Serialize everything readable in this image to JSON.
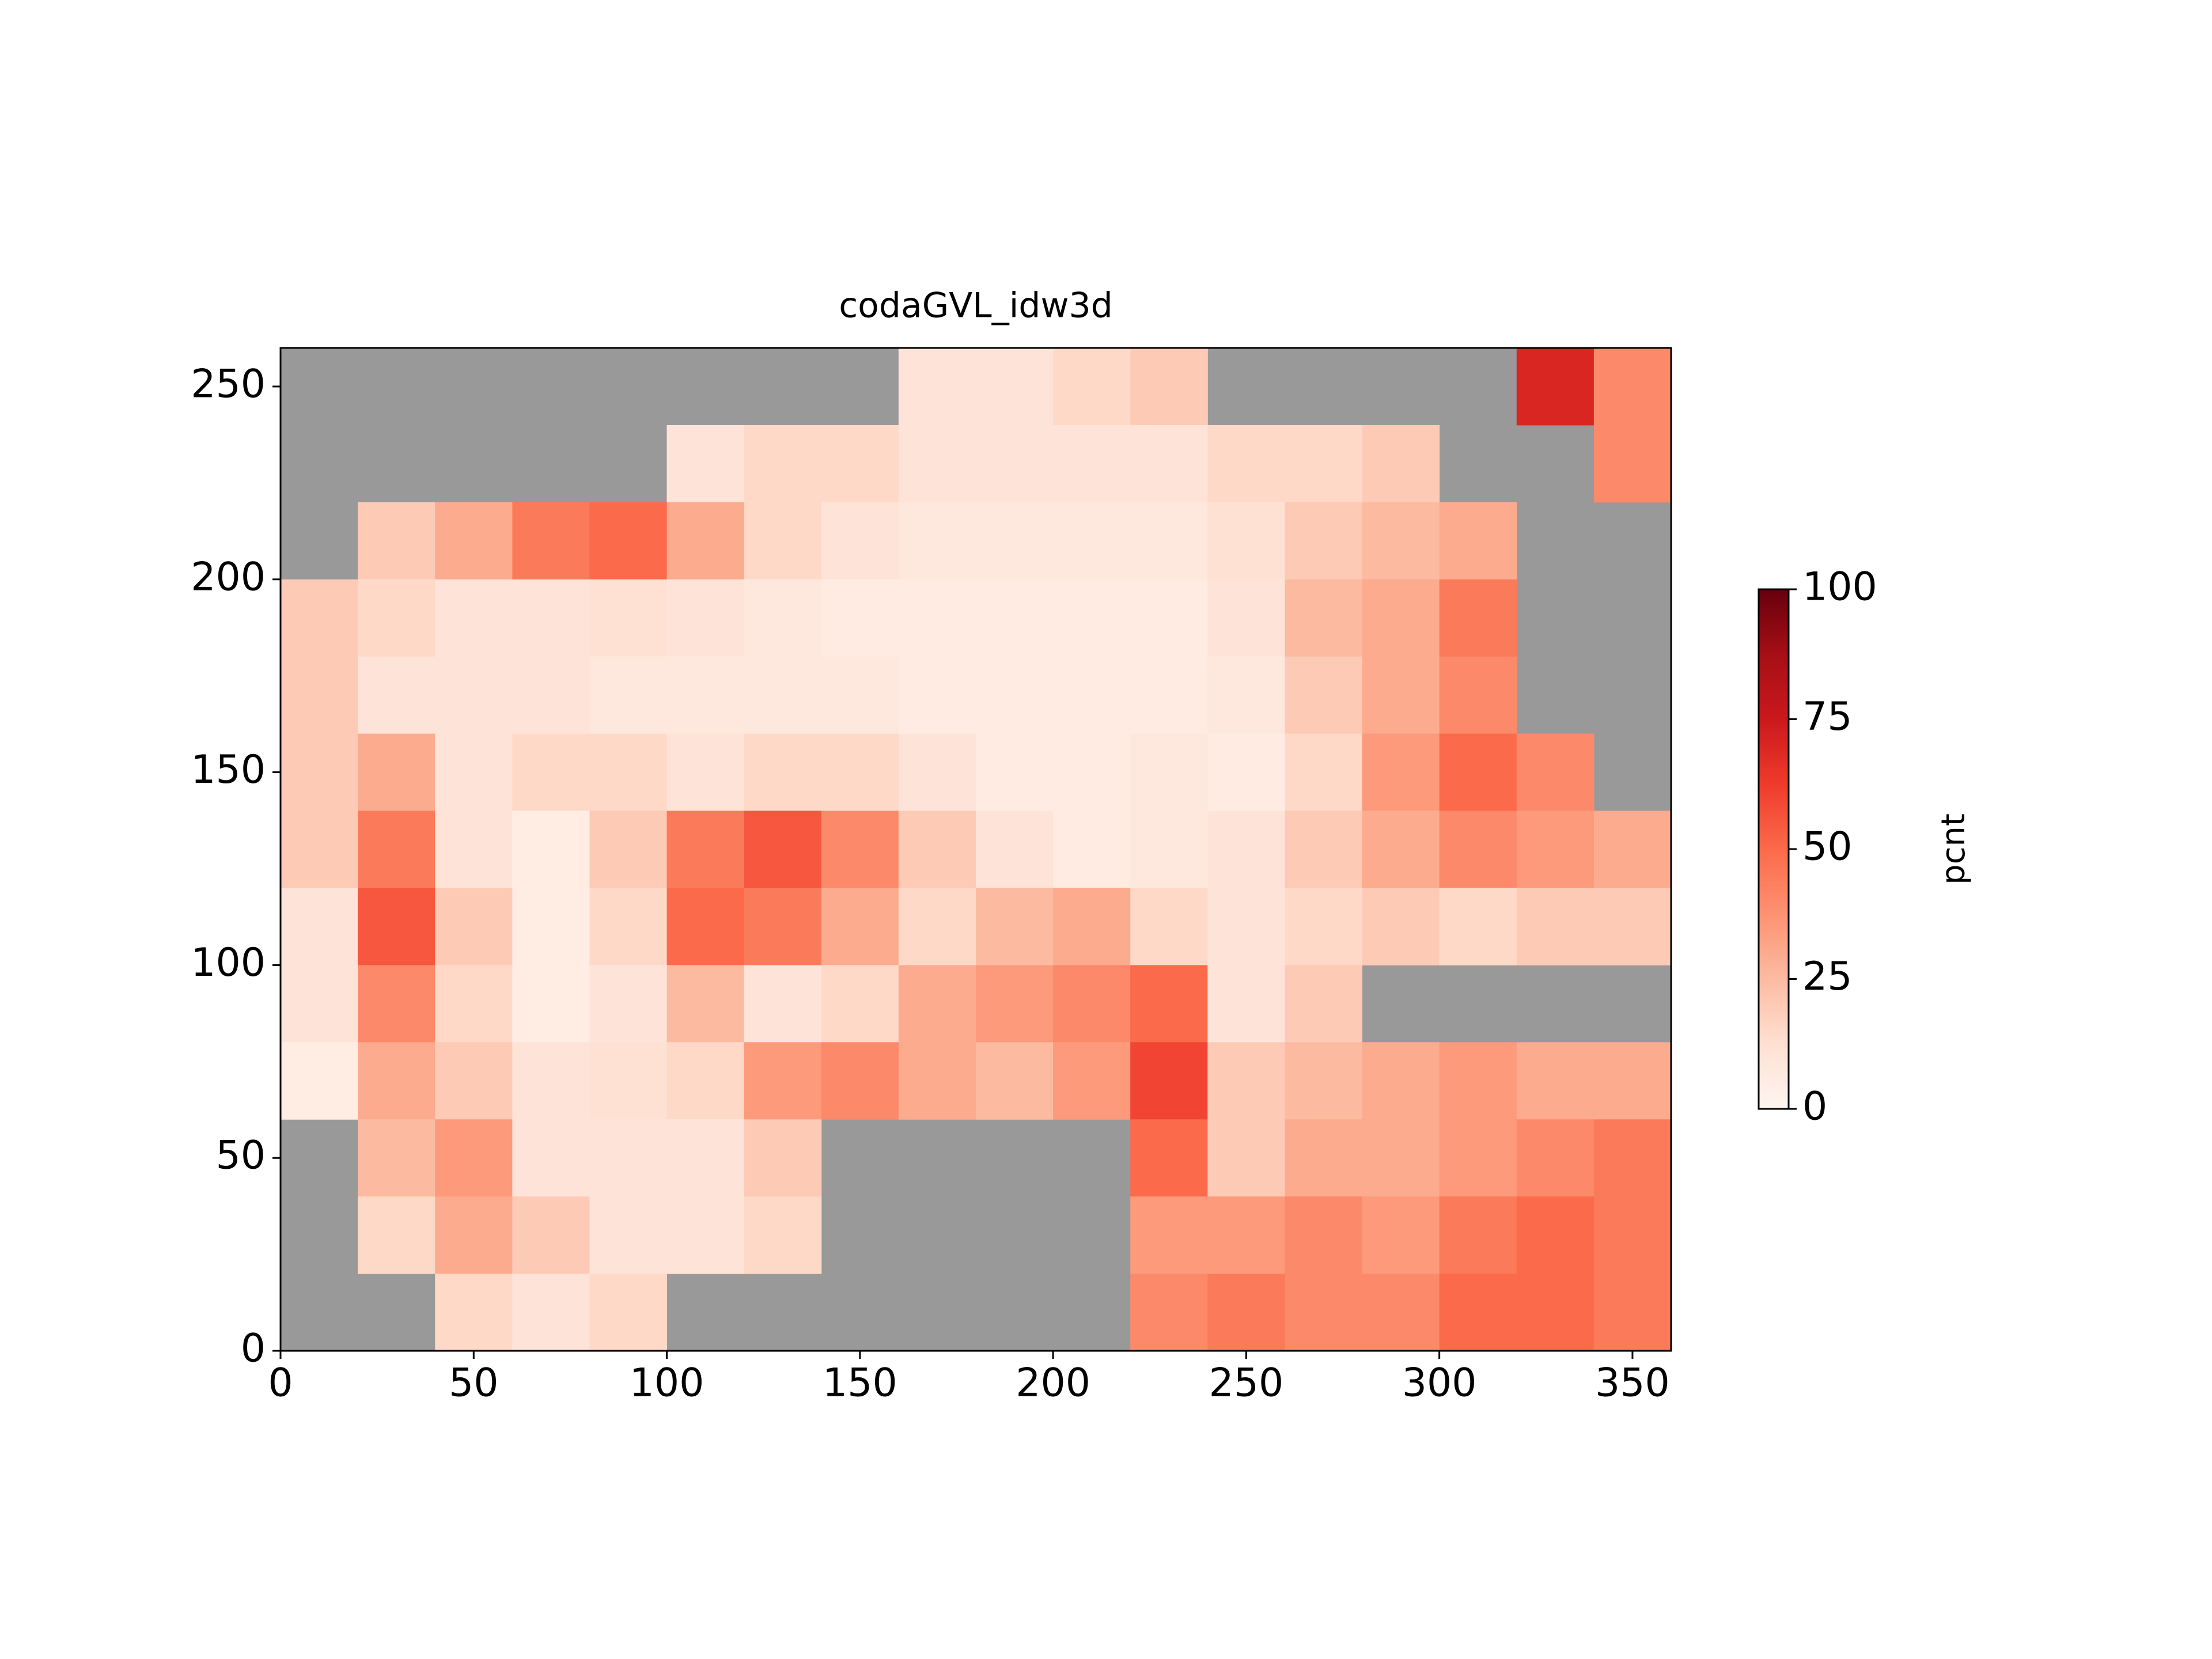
{
  "chart_data": {
    "type": "heatmap",
    "title": "codaGVL_idw3d",
    "xlim": [
      0,
      360
    ],
    "ylim": [
      0,
      260
    ],
    "xticks": [
      0,
      50,
      100,
      150,
      200,
      250,
      300,
      350
    ],
    "yticks": [
      0,
      50,
      100,
      150,
      200,
      250
    ],
    "values": [
      [
        null,
        null,
        null,
        null,
        null,
        null,
        null,
        null,
        10,
        10,
        15,
        20,
        null,
        null,
        null,
        null,
        70,
        40
      ],
      [
        null,
        null,
        null,
        null,
        null,
        10,
        15,
        15,
        10,
        10,
        10,
        10,
        15,
        15,
        20,
        null,
        null,
        40
      ],
      [
        null,
        20,
        30,
        45,
        50,
        30,
        15,
        10,
        8,
        8,
        8,
        8,
        12,
        20,
        25,
        30,
        null,
        null
      ],
      [
        20,
        15,
        10,
        10,
        12,
        10,
        8,
        6,
        6,
        6,
        6,
        6,
        10,
        25,
        30,
        45,
        null,
        null
      ],
      [
        20,
        10,
        10,
        10,
        8,
        8,
        8,
        8,
        6,
        6,
        6,
        6,
        8,
        20,
        30,
        40,
        null,
        null
      ],
      [
        20,
        30,
        10,
        15,
        15,
        10,
        15,
        15,
        10,
        6,
        6,
        8,
        6,
        15,
        35,
        50,
        40,
        null
      ],
      [
        20,
        45,
        10,
        5,
        20,
        45,
        55,
        40,
        20,
        10,
        6,
        8,
        10,
        20,
        30,
        40,
        35,
        30
      ],
      [
        10,
        55,
        20,
        5,
        15,
        50,
        45,
        30,
        15,
        25,
        30,
        15,
        10,
        15,
        20,
        15,
        20,
        20
      ],
      [
        10,
        40,
        15,
        5,
        10,
        25,
        10,
        15,
        30,
        35,
        40,
        50,
        10,
        20,
        null,
        null,
        null,
        null
      ],
      [
        5,
        30,
        20,
        10,
        12,
        15,
        35,
        40,
        30,
        25,
        35,
        60,
        20,
        25,
        30,
        35,
        30,
        30
      ],
      [
        null,
        25,
        35,
        10,
        10,
        10,
        20,
        null,
        null,
        null,
        null,
        50,
        20,
        30,
        30,
        35,
        40,
        45
      ],
      [
        null,
        15,
        30,
        20,
        10,
        10,
        15,
        null,
        null,
        null,
        null,
        35,
        35,
        40,
        35,
        45,
        50,
        45
      ],
      [
        null,
        null,
        15,
        10,
        15,
        null,
        null,
        null,
        null,
        null,
        null,
        40,
        45,
        40,
        40,
        50,
        50,
        45
      ]
    ],
    "nan_color": "#999999",
    "colormap": [
      "#fff5f0",
      "#fee0d2",
      "#fcbba1",
      "#fc9272",
      "#fb6a4a",
      "#ef3b2c",
      "#cb181d",
      "#a50f15",
      "#67000d"
    ],
    "clim": [
      0,
      100
    ],
    "cticks": [
      0,
      25,
      50,
      75,
      100
    ],
    "colorbar_label": "pcnt"
  }
}
